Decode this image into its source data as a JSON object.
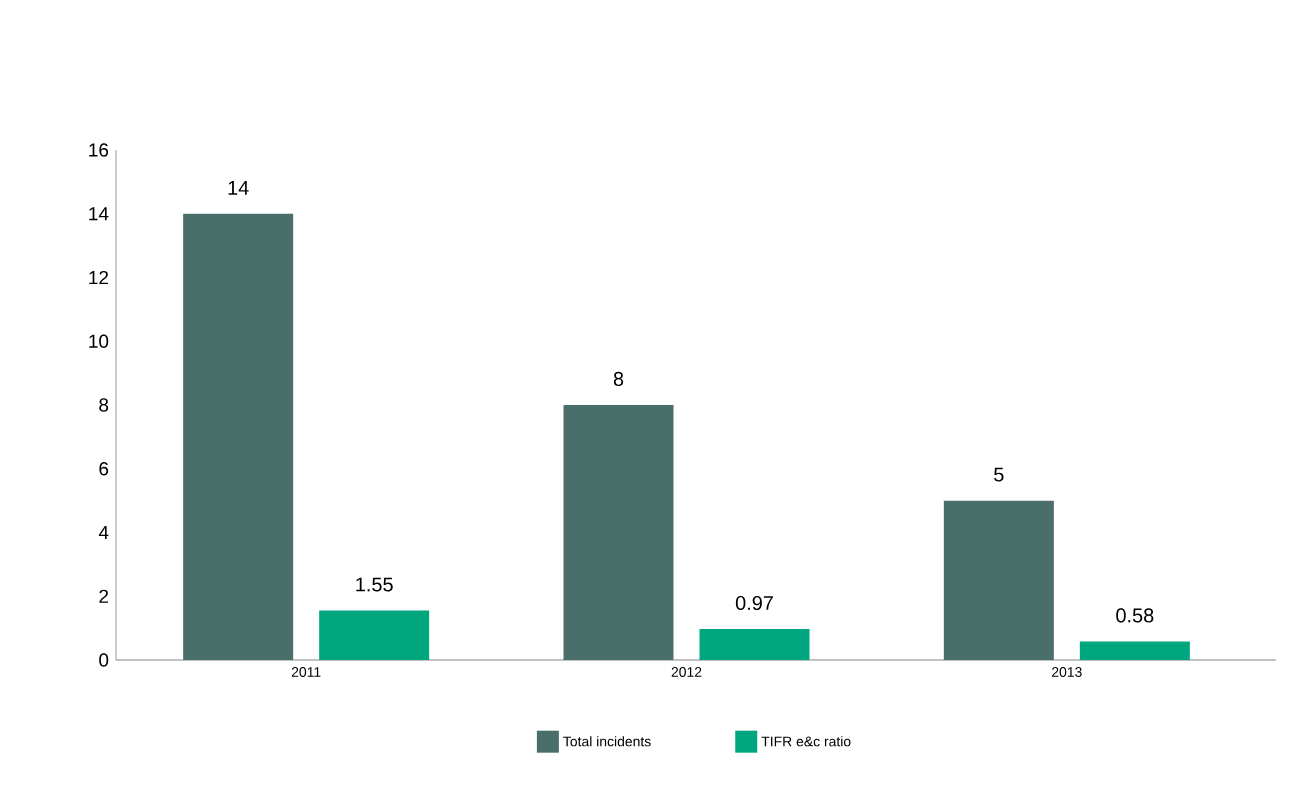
{
  "chart_data": {
    "type": "bar",
    "categories": [
      "2011",
      "2012",
      "2013"
    ],
    "series": [
      {
        "name": "Total incidents",
        "color": "#4a6f6a",
        "values": [
          14,
          8,
          5
        ]
      },
      {
        "name": "TIFR e&c ratio",
        "color": "#00a67e",
        "values": [
          1.55,
          0.97,
          0.58
        ]
      }
    ],
    "ylim": [
      0,
      16
    ],
    "yticks": [
      0,
      2,
      4,
      6,
      8,
      10,
      12,
      14,
      16
    ],
    "data_labels": true,
    "grid": false,
    "legend": "bottom"
  }
}
